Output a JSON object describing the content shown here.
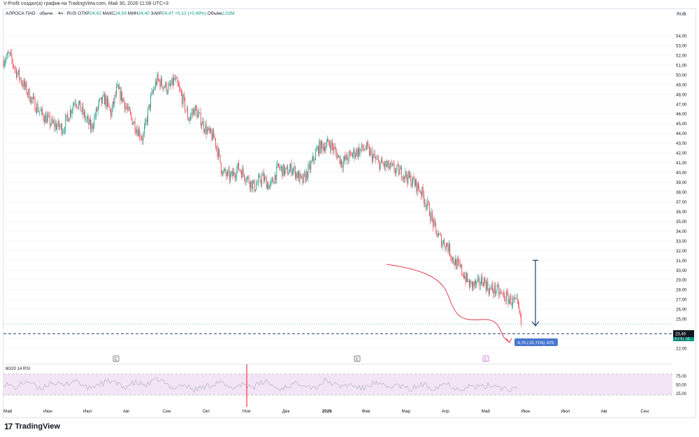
{
  "caption": "V-Profit создал(а) график на TradingView.com, Май 30, 2026 11:08 UTC+3",
  "legend": {
    "symbol": "АЛРОСА ПАО · обычн. · 4ч · RUS",
    "open_label": "ОТКР",
    "open": "24,42",
    "high_label": "МАКС",
    "high": "24,59",
    "low_label": "МИН",
    "low": "24,40",
    "close_label": "ЗАКР",
    "close": "24,47",
    "change": "+0,12 (+0,49%)",
    "volume_label": "Объём",
    "volume": "2,02M"
  },
  "currency": "RUB",
  "rsi_label": "80/20 14 RSI",
  "measure_label": "-6,75 (-21,71%) -675",
  "price_tag": "24,47",
  "price_timer": "02:51:51",
  "target_tag": "23,49",
  "event_markers": [
    "E",
    "E",
    "E"
  ],
  "logo_text": "TradingView",
  "colors": {
    "up": "#089981",
    "down": "#f23645",
    "rsi_fill": "#f3e5f5",
    "measure_blue": "#4a78d0",
    "arrow_navy": "#1c3f6e"
  },
  "chart_data": {
    "type": "line",
    "title": "",
    "x_ticks": [
      "Май",
      "Июн",
      "Июл",
      "Авг",
      "Сен",
      "Окт",
      "Ноя",
      "Дек",
      "2026",
      "Фев",
      "Мар",
      "Апр",
      "Май",
      "Июн",
      "Июл",
      "Авг",
      "Сен"
    ],
    "y_ticks": [
      "54,00",
      "53,00",
      "52,00",
      "51,00",
      "50,00",
      "49,00",
      "48,00",
      "47,00",
      "46,00",
      "45,00",
      "44,00",
      "43,00",
      "42,00",
      "41,00",
      "40,00",
      "39,00",
      "38,00",
      "37,00",
      "36,00",
      "35,00",
      "34,00",
      "33,00",
      "32,00",
      "31,00",
      "30,00",
      "29,00",
      "28,00",
      "27,00",
      "26,00",
      "25,00",
      "23,00",
      "22,00"
    ],
    "ylim": [
      21.5,
      55.5
    ],
    "price_series": {
      "name": "",
      "x": [
        0,
        0.15,
        0.3,
        0.5,
        0.7,
        0.95,
        1.2,
        1.5,
        1.8,
        2.0,
        2.2,
        2.4,
        2.55,
        2.7,
        2.85,
        3.0,
        3.15,
        3.35,
        3.5,
        3.7,
        3.85,
        4.0,
        4.15,
        4.3,
        4.5,
        4.65,
        4.8,
        5.0,
        5.15,
        5.3,
        5.5,
        5.7,
        5.9,
        6.1,
        6.3,
        6.5,
        6.7,
        6.9,
        7.1,
        7.25,
        7.5,
        7.7,
        7.9,
        8.2,
        8.5,
        8.8,
        9.1,
        9.4,
        9.7,
        10.0,
        10.3,
        10.5,
        10.7,
        10.85,
        11.0,
        11.15,
        11.3,
        11.5,
        11.7,
        11.9,
        12.05,
        12.2,
        12.35,
        12.5,
        12.7,
        12.9,
        13.0
      ],
      "values": [
        51.5,
        52.0,
        50.5,
        49.0,
        47.5,
        46.0,
        45.0,
        44.5,
        47.5,
        46.0,
        44.5,
        47.0,
        47.5,
        46.0,
        48.5,
        47.5,
        46.0,
        44.5,
        43.5,
        47.5,
        49.5,
        49.0,
        48.5,
        49.5,
        47.5,
        45.5,
        46.5,
        45.0,
        44.0,
        43.5,
        40.0,
        39.5,
        40.5,
        39.5,
        38.5,
        39.5,
        38.5,
        40.5,
        40.0,
        40.5,
        39.0,
        40.5,
        42.5,
        43.0,
        41.0,
        42.0,
        42.5,
        41.0,
        40.5,
        40.0,
        39.0,
        38.0,
        36.0,
        34.0,
        33.0,
        32.5,
        31.0,
        30.0,
        28.5,
        28.5,
        29.0,
        28.0,
        28.0,
        27.5,
        27.0,
        26.5,
        24.5
      ]
    },
    "rsi": {
      "ylim": [
        0,
        100
      ],
      "bands": [
        80,
        20
      ],
      "tick_labels": [
        "75,00",
        "50,00",
        "25,00"
      ],
      "x": [
        0,
        0.3,
        0.6,
        0.9,
        1.2,
        1.5,
        1.8,
        2.1,
        2.4,
        2.7,
        3.0,
        3.3,
        3.6,
        3.9,
        4.2,
        4.5,
        4.8,
        5.1,
        5.4,
        5.7,
        6.0,
        6.3,
        6.6,
        6.9,
        7.2,
        7.5,
        7.8,
        8.1,
        8.4,
        8.7,
        9.0,
        9.3,
        9.6,
        9.9,
        10.2,
        10.5,
        10.8,
        11.1,
        11.4,
        11.7,
        12.0,
        12.3,
        12.6,
        12.9
      ],
      "values": [
        55,
        40,
        62,
        35,
        58,
        45,
        65,
        38,
        52,
        60,
        42,
        55,
        48,
        66,
        40,
        50,
        35,
        45,
        58,
        38,
        52,
        44,
        60,
        36,
        48,
        55,
        40,
        62,
        45,
        50,
        38,
        55,
        42,
        48,
        35,
        50,
        40,
        55,
        38,
        45,
        42,
        50,
        38,
        35
      ]
    },
    "annotations": {
      "dashed_target_price": 23.49,
      "measure_from": 31.0,
      "measure_to": 24.3
    }
  }
}
